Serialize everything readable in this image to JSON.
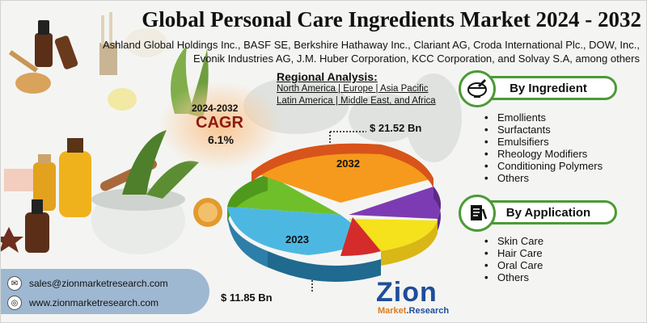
{
  "header": {
    "title": "Global Personal Care Ingredients Market 2024 - 2032",
    "companies_line1": "Ashland Global Holdings Inc., BASF SE, Berkshire Hathaway Inc., Clariant AG, Croda International Plc., DOW, Inc.,",
    "companies_line2": "Evonik Industries AG, J.M. Huber Corporation, KCC Corporation, and Solvay S.A, among others"
  },
  "regional": {
    "title": "Regional Analysis:",
    "line1": "North America | Europe | Asia Pacific",
    "line2": "Latin America | Middle East, and Africa"
  },
  "cagr": {
    "years": "2024-2032",
    "label": "CAGR",
    "value": "6.1%"
  },
  "market": {
    "value_2032": "$ 21.52 Bn",
    "value_2023": "$ 11.85 Bn",
    "year_2032": "2032",
    "year_2023": "2023"
  },
  "by_ingredient": {
    "title": "By Ingredient",
    "items": [
      "Emollients",
      "Surfactants",
      "Emulsifiers",
      "Rheology Modifiers",
      "Conditioning Polymers",
      "Others"
    ]
  },
  "by_application": {
    "title": "By Application",
    "items": [
      "Skin Care",
      "Hair Care",
      "Oral Care",
      "Others"
    ]
  },
  "contact": {
    "email": "sales@zionmarketresearch.com",
    "website": "www.zionmarketresearch.com"
  },
  "logo": {
    "word": "Zion",
    "sub_a": "Market",
    "sub_b": ".Research"
  },
  "colors": {
    "accent_green": "#4c9a36",
    "cagr_red": "#8b1a10",
    "contact_blue": "#9fb8d2",
    "logo_blue": "#1f4d9a",
    "logo_orange": "#e07a1f"
  }
}
